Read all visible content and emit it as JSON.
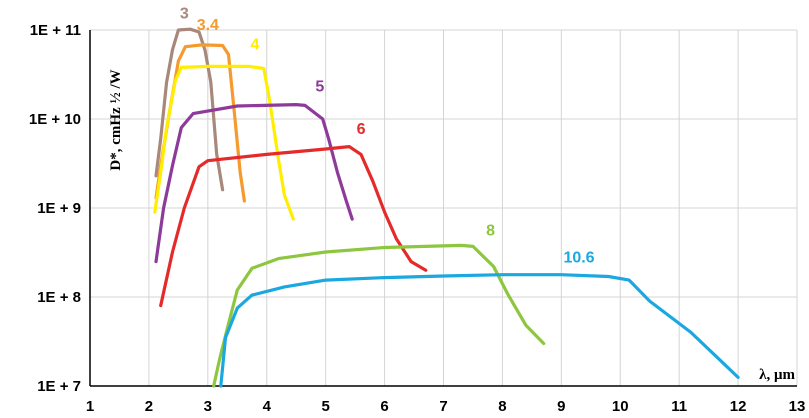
{
  "chart_data": {
    "type": "line",
    "title": "",
    "xlabel": "λ, μm",
    "ylabel": "D*, cmHz ½ /W",
    "y_scale": "log",
    "xlim": [
      1,
      13
    ],
    "ylim": [
      10000000,
      100000000000
    ],
    "x_ticks": [
      "1",
      "2",
      "3",
      "4",
      "5",
      "6",
      "7",
      "8",
      "9",
      "10",
      "11",
      "12",
      "13"
    ],
    "y_ticks": [
      "1E + 7",
      "1E + 8",
      "1E + 9",
      "1E + 10",
      "1E + 11"
    ],
    "grid": true,
    "series": [
      {
        "name": "3",
        "color": "#a8887a",
        "points": [
          [
            2.12,
            2300000000.0
          ],
          [
            2.2,
            6000000000.0
          ],
          [
            2.3,
            26000000000.0
          ],
          [
            2.4,
            60000000000.0
          ],
          [
            2.5,
            100000000000.0
          ],
          [
            2.7,
            102000000000.0
          ],
          [
            2.85,
            95000000000.0
          ],
          [
            2.95,
            60000000000.0
          ],
          [
            3.05,
            26000000000.0
          ],
          [
            3.15,
            4000000000.0
          ],
          [
            3.25,
            1600000000.0
          ]
        ]
      },
      {
        "name": "3.4",
        "color": "#f59a2c",
        "points": [
          [
            2.12,
            1300000000.0
          ],
          [
            2.2,
            3000000000.0
          ],
          [
            2.35,
            12000000000.0
          ],
          [
            2.5,
            45000000000.0
          ],
          [
            2.62,
            65000000000.0
          ],
          [
            2.9,
            68000000000.0
          ],
          [
            3.25,
            67000000000.0
          ],
          [
            3.35,
            53000000000.0
          ],
          [
            3.45,
            12000000000.0
          ],
          [
            3.55,
            2500000000.0
          ],
          [
            3.62,
            1200000000.0
          ]
        ]
      },
      {
        "name": "4",
        "color": "#ffee00",
        "points": [
          [
            2.1,
            900000000.0
          ],
          [
            2.2,
            2500000000.0
          ],
          [
            2.3,
            8000000000.0
          ],
          [
            2.45,
            27000000000.0
          ],
          [
            2.55,
            38000000000.0
          ],
          [
            3.0,
            39000000000.0
          ],
          [
            3.7,
            39000000000.0
          ],
          [
            3.95,
            37000000000.0
          ],
          [
            4.05,
            16000000000.0
          ],
          [
            4.2,
            3500000000.0
          ],
          [
            4.3,
            1400000000.0
          ],
          [
            4.45,
            750000000.0
          ]
        ]
      },
      {
        "name": "5",
        "color": "#8e3a9a",
        "points": [
          [
            2.12,
            250000000.0
          ],
          [
            2.25,
            1000000000.0
          ],
          [
            2.4,
            3000000000.0
          ],
          [
            2.55,
            8000000000.0
          ],
          [
            2.75,
            11500000000.0
          ],
          [
            3.5,
            14000000000.0
          ],
          [
            4.5,
            14500000000.0
          ],
          [
            4.65,
            14200000000.0
          ],
          [
            4.95,
            10000000000.0
          ],
          [
            5.05,
            6000000000.0
          ],
          [
            5.2,
            2500000000.0
          ],
          [
            5.35,
            1200000000.0
          ],
          [
            5.45,
            750000000.0
          ]
        ]
      },
      {
        "name": "6",
        "color": "#e52a2a",
        "points": [
          [
            2.2,
            80000000.0
          ],
          [
            2.4,
            320000000.0
          ],
          [
            2.6,
            1000000000.0
          ],
          [
            2.85,
            2900000000.0
          ],
          [
            3.0,
            3400000000.0
          ],
          [
            4.0,
            4000000000.0
          ],
          [
            5.0,
            4600000000.0
          ],
          [
            5.4,
            4900000000.0
          ],
          [
            5.6,
            4000000000.0
          ],
          [
            5.8,
            2000000000.0
          ],
          [
            6.0,
            900000000.0
          ],
          [
            6.2,
            450000000.0
          ],
          [
            6.45,
            250000000.0
          ],
          [
            6.7,
            200000000.0
          ]
        ]
      },
      {
        "name": "8",
        "color": "#8dc63f",
        "points": [
          [
            3.1,
            10000000.0
          ],
          [
            3.2,
            20000000.0
          ],
          [
            3.35,
            50000000.0
          ],
          [
            3.5,
            120000000.0
          ],
          [
            3.75,
            210000000.0
          ],
          [
            4.2,
            270000000.0
          ],
          [
            5.0,
            320000000.0
          ],
          [
            6.0,
            360000000.0
          ],
          [
            7.3,
            380000000.0
          ],
          [
            7.5,
            370000000.0
          ],
          [
            7.85,
            220000000.0
          ],
          [
            8.1,
            105000000.0
          ],
          [
            8.4,
            48000000.0
          ],
          [
            8.7,
            30000000.0
          ]
        ]
      },
      {
        "name": "10.6",
        "color": "#1ba8e0",
        "points": [
          [
            3.22,
            10000000.0
          ],
          [
            3.3,
            35000000.0
          ],
          [
            3.5,
            75000000.0
          ],
          [
            3.75,
            105000000.0
          ],
          [
            4.3,
            130000000.0
          ],
          [
            5.0,
            155000000.0
          ],
          [
            6.0,
            165000000.0
          ],
          [
            7.0,
            172000000.0
          ],
          [
            8.0,
            178000000.0
          ],
          [
            9.0,
            178000000.0
          ],
          [
            9.8,
            170000000.0
          ],
          [
            10.15,
            155000000.0
          ],
          [
            10.5,
            90000000.0
          ],
          [
            11.2,
            40000000.0
          ],
          [
            11.75,
            18000000.0
          ],
          [
            12.0,
            12500000.0
          ]
        ]
      }
    ]
  }
}
